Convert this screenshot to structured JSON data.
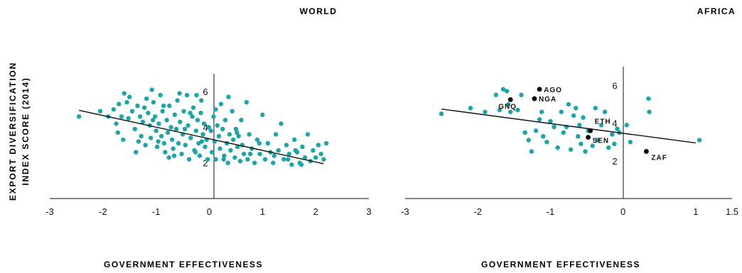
{
  "figure": {
    "ylabel_line1": "EXPORT DIVERSIFICATION",
    "ylabel_line2": "INDEX SCORE (2014)"
  },
  "chart_data": [
    {
      "type": "scatter",
      "title": "WORLD",
      "xlabel": "GOVERNMENT EFFECTIVENESS",
      "ylabel": "EXPORT DIVERSIFICATION INDEX SCORE (2014)",
      "xlim": [
        -3,
        3
      ],
      "ylim": [
        0,
        7
      ],
      "xticks": [
        "-3",
        "-2",
        "-1",
        "0",
        "1",
        "2",
        "3"
      ],
      "xtick_values": [
        -3,
        -2,
        -1,
        0,
        1,
        2,
        3
      ],
      "yticks": [
        "2",
        "4",
        "6"
      ],
      "ytick_values": [
        2,
        4,
        6
      ],
      "point_color": "#1aa5a8",
      "line_color": "#111111",
      "fit_line": [
        [
          -2.45,
          4.95
        ],
        [
          2.15,
          1.95
        ]
      ],
      "points": [
        [
          -2.45,
          4.6
        ],
        [
          -2.05,
          4.9
        ],
        [
          -1.9,
          4.6
        ],
        [
          -1.8,
          5.0
        ],
        [
          -1.75,
          4.2
        ],
        [
          -1.7,
          5.3
        ],
        [
          -1.65,
          4.6
        ],
        [
          -1.62,
          3.3
        ],
        [
          -1.6,
          5.9
        ],
        [
          -1.55,
          5.4
        ],
        [
          -1.52,
          4.5
        ],
        [
          -1.5,
          5.7
        ],
        [
          -1.45,
          4.9
        ],
        [
          -1.4,
          3.9
        ],
        [
          -1.38,
          2.6
        ],
        [
          -1.35,
          5.2
        ],
        [
          -1.3,
          4.6
        ],
        [
          -1.28,
          3.5
        ],
        [
          -1.25,
          4.3
        ],
        [
          -1.22,
          5.1
        ],
        [
          -1.2,
          3.0
        ],
        [
          -1.18,
          5.6
        ],
        [
          -1.15,
          4.8
        ],
        [
          -1.12,
          4.1
        ],
        [
          -1.1,
          3.4
        ],
        [
          -1.08,
          6.1
        ],
        [
          -1.05,
          5.4
        ],
        [
          -1.02,
          4.6
        ],
        [
          -1.0,
          3.8
        ],
        [
          -0.98,
          2.9
        ],
        [
          -0.95,
          4.2
        ],
        [
          -0.92,
          5.8
        ],
        [
          -0.9,
          3.5
        ],
        [
          -0.88,
          4.9
        ],
        [
          -0.85,
          3.1
        ],
        [
          -0.83,
          2.6
        ],
        [
          -0.8,
          4.4
        ],
        [
          -0.78,
          3.7
        ],
        [
          -0.75,
          5.2
        ],
        [
          -0.72,
          4.0
        ],
        [
          -0.7,
          3.3
        ],
        [
          -0.68,
          2.8
        ],
        [
          -0.65,
          4.7
        ],
        [
          -0.62,
          3.9
        ],
        [
          -0.6,
          5.5
        ],
        [
          -0.58,
          3.1
        ],
        [
          -0.55,
          4.3
        ],
        [
          -0.52,
          2.5
        ],
        [
          -0.5,
          3.6
        ],
        [
          -0.48,
          4.9
        ],
        [
          -0.45,
          3.0
        ],
        [
          -0.42,
          5.8
        ],
        [
          -0.4,
          4.1
        ],
        [
          -0.38,
          2.2
        ],
        [
          -0.35,
          3.4
        ],
        [
          -0.32,
          4.6
        ],
        [
          -0.3,
          5.1
        ],
        [
          -0.28,
          2.7
        ],
        [
          -0.25,
          3.8
        ],
        [
          -0.22,
          4.4
        ],
        [
          -0.2,
          3.1
        ],
        [
          -0.18,
          2.4
        ],
        [
          -0.15,
          5.5
        ],
        [
          -0.12,
          3.6
        ],
        [
          -0.1,
          4.2
        ],
        [
          -0.08,
          2.9
        ],
        [
          -0.05,
          3.3
        ],
        [
          -0.03,
          2.2
        ],
        [
          -0.01,
          4.0
        ],
        [
          -1.72,
          3.7
        ],
        [
          -1.33,
          3.2
        ],
        [
          -1.06,
          4.4
        ],
        [
          -0.86,
          5.2
        ],
        [
          -0.66,
          2.4
        ],
        [
          -0.46,
          3.9
        ],
        [
          -0.26,
          2.6
        ],
        [
          -0.16,
          4.8
        ],
        [
          -0.96,
          3.2
        ],
        [
          -0.76,
          2.3
        ],
        [
          -0.56,
          5.9
        ],
        [
          -0.36,
          4.8
        ],
        [
          -0.24,
          5.8
        ],
        [
          -0.14,
          3.2
        ],
        [
          0.03,
          3.8
        ],
        [
          0.05,
          2.6
        ],
        [
          0.08,
          4.6
        ],
        [
          0.1,
          3.2
        ],
        [
          0.12,
          2.2
        ],
        [
          0.15,
          4.1
        ],
        [
          0.18,
          3.5
        ],
        [
          0.2,
          2.8
        ],
        [
          0.22,
          5.3
        ],
        [
          0.25,
          3.9
        ],
        [
          0.28,
          2.4
        ],
        [
          0.3,
          4.4
        ],
        [
          0.33,
          3.1
        ],
        [
          0.35,
          2.0
        ],
        [
          0.38,
          3.6
        ],
        [
          0.4,
          2.7
        ],
        [
          0.43,
          4.9
        ],
        [
          0.45,
          3.3
        ],
        [
          0.48,
          2.3
        ],
        [
          0.5,
          3.9
        ],
        [
          0.53,
          2.9
        ],
        [
          0.55,
          3.5
        ],
        [
          0.58,
          2.1
        ],
        [
          0.6,
          4.4
        ],
        [
          0.62,
          3.0
        ],
        [
          0.65,
          2.5
        ],
        [
          0.7,
          5.4
        ],
        [
          0.72,
          2.2
        ],
        [
          0.75,
          3.6
        ],
        [
          0.8,
          2.8
        ],
        [
          0.85,
          2.0
        ],
        [
          0.9,
          3.3
        ],
        [
          0.95,
          2.5
        ],
        [
          1.0,
          4.7
        ],
        [
          1.05,
          2.2
        ],
        [
          1.1,
          3.1
        ],
        [
          1.15,
          2.6
        ],
        [
          1.2,
          2.0
        ],
        [
          1.25,
          3.6
        ],
        [
          1.3,
          2.7
        ],
        [
          1.35,
          4.2
        ],
        [
          1.4,
          2.2
        ],
        [
          1.45,
          3.0
        ],
        [
          1.5,
          2.5
        ],
        [
          1.55,
          1.9
        ],
        [
          1.6,
          3.3
        ],
        [
          1.65,
          2.6
        ],
        [
          1.7,
          2.0
        ],
        [
          1.75,
          2.9
        ],
        [
          1.8,
          2.3
        ],
        [
          1.85,
          3.6
        ],
        [
          1.9,
          2.1
        ],
        [
          1.95,
          2.7
        ],
        [
          2.0,
          2.3
        ],
        [
          2.05,
          3.0
        ],
        [
          2.1,
          2.5
        ],
        [
          2.15,
          2.2
        ],
        [
          2.2,
          3.1
        ],
        [
          0.27,
          2.2
        ],
        [
          0.52,
          3.7
        ],
        [
          0.77,
          2.5
        ],
        [
          1.22,
          2.4
        ],
        [
          1.48,
          2.2
        ],
        [
          1.73,
          1.9
        ],
        [
          0.36,
          5.7
        ],
        [
          0.12,
          5.0
        ],
        [
          0.94,
          3.1
        ],
        [
          1.62,
          2.7
        ]
      ]
    },
    {
      "type": "scatter",
      "title": "AFRICA",
      "xlabel": "GOVERNMENT EFFECTIVENESS",
      "ylabel": "EXPORT DIVERSIFICATION INDEX SCORE (2014)",
      "xlim": [
        -3,
        1.5
      ],
      "ylim": [
        0,
        7
      ],
      "xticks": [
        "-3",
        "-2",
        "-1",
        "0",
        "1",
        "1.5"
      ],
      "xtick_values": [
        -3,
        -2,
        -1,
        0,
        1,
        1.5
      ],
      "yticks": [
        "2",
        "4",
        "6"
      ],
      "ytick_values": [
        2,
        4,
        6
      ],
      "point_color": "#1aa5a8",
      "highlight_color": "#000000",
      "line_color": "#111111",
      "fit_line": [
        [
          -2.5,
          4.75
        ],
        [
          1.0,
          2.95
        ]
      ],
      "points": [
        [
          -2.5,
          4.5
        ],
        [
          -2.1,
          4.8
        ],
        [
          -1.9,
          4.6
        ],
        [
          -1.75,
          5.5
        ],
        [
          -1.7,
          4.7
        ],
        [
          -1.65,
          5.8
        ],
        [
          -1.6,
          5.7
        ],
        [
          -1.58,
          5.0
        ],
        [
          -1.55,
          4.6
        ],
        [
          -1.45,
          4.7
        ],
        [
          -1.4,
          5.5
        ],
        [
          -1.35,
          3.5
        ],
        [
          -1.3,
          3.1
        ],
        [
          -1.26,
          2.5
        ],
        [
          -1.2,
          3.6
        ],
        [
          -1.15,
          4.2
        ],
        [
          -1.1,
          3.3
        ],
        [
          -1.05,
          3.0
        ],
        [
          -1.0,
          4.1
        ],
        [
          -0.95,
          3.8
        ],
        [
          -0.9,
          2.7
        ],
        [
          -0.85,
          4.6
        ],
        [
          -0.82,
          3.5
        ],
        [
          -0.78,
          3.8
        ],
        [
          -0.75,
          5.0
        ],
        [
          -0.72,
          2.6
        ],
        [
          -0.68,
          4.4
        ],
        [
          -0.65,
          4.8
        ],
        [
          -0.62,
          3.3
        ],
        [
          -0.6,
          3.9
        ],
        [
          -0.58,
          2.9
        ],
        [
          -0.55,
          4.3
        ],
        [
          -0.52,
          2.5
        ],
        [
          -0.48,
          3.6
        ],
        [
          -0.42,
          2.8
        ],
        [
          -0.38,
          4.8
        ],
        [
          -0.35,
          3.1
        ],
        [
          -0.3,
          3.9
        ],
        [
          -0.25,
          4.6
        ],
        [
          -0.2,
          2.7
        ],
        [
          -0.15,
          3.4
        ],
        [
          -0.12,
          2.9
        ],
        [
          -0.08,
          3.7
        ],
        [
          -0.05,
          3.5
        ],
        [
          0.05,
          3.9
        ],
        [
          0.1,
          3.0
        ],
        [
          0.35,
          5.3
        ],
        [
          0.36,
          4.6
        ],
        [
          1.05,
          3.1
        ],
        [
          -1.12,
          4.6
        ]
      ],
      "highlighted": [
        {
          "label": "AGO",
          "x": -1.15,
          "y": 5.8
        },
        {
          "label": "NGA",
          "x": -1.22,
          "y": 5.3
        },
        {
          "label": "GNQ",
          "x": -1.55,
          "y": 5.25
        },
        {
          "label": "ETH",
          "x": -0.45,
          "y": 3.6
        },
        {
          "label": "SEN",
          "x": -0.48,
          "y": 3.25
        },
        {
          "label": "ZAF",
          "x": 0.32,
          "y": 2.5
        }
      ]
    }
  ]
}
